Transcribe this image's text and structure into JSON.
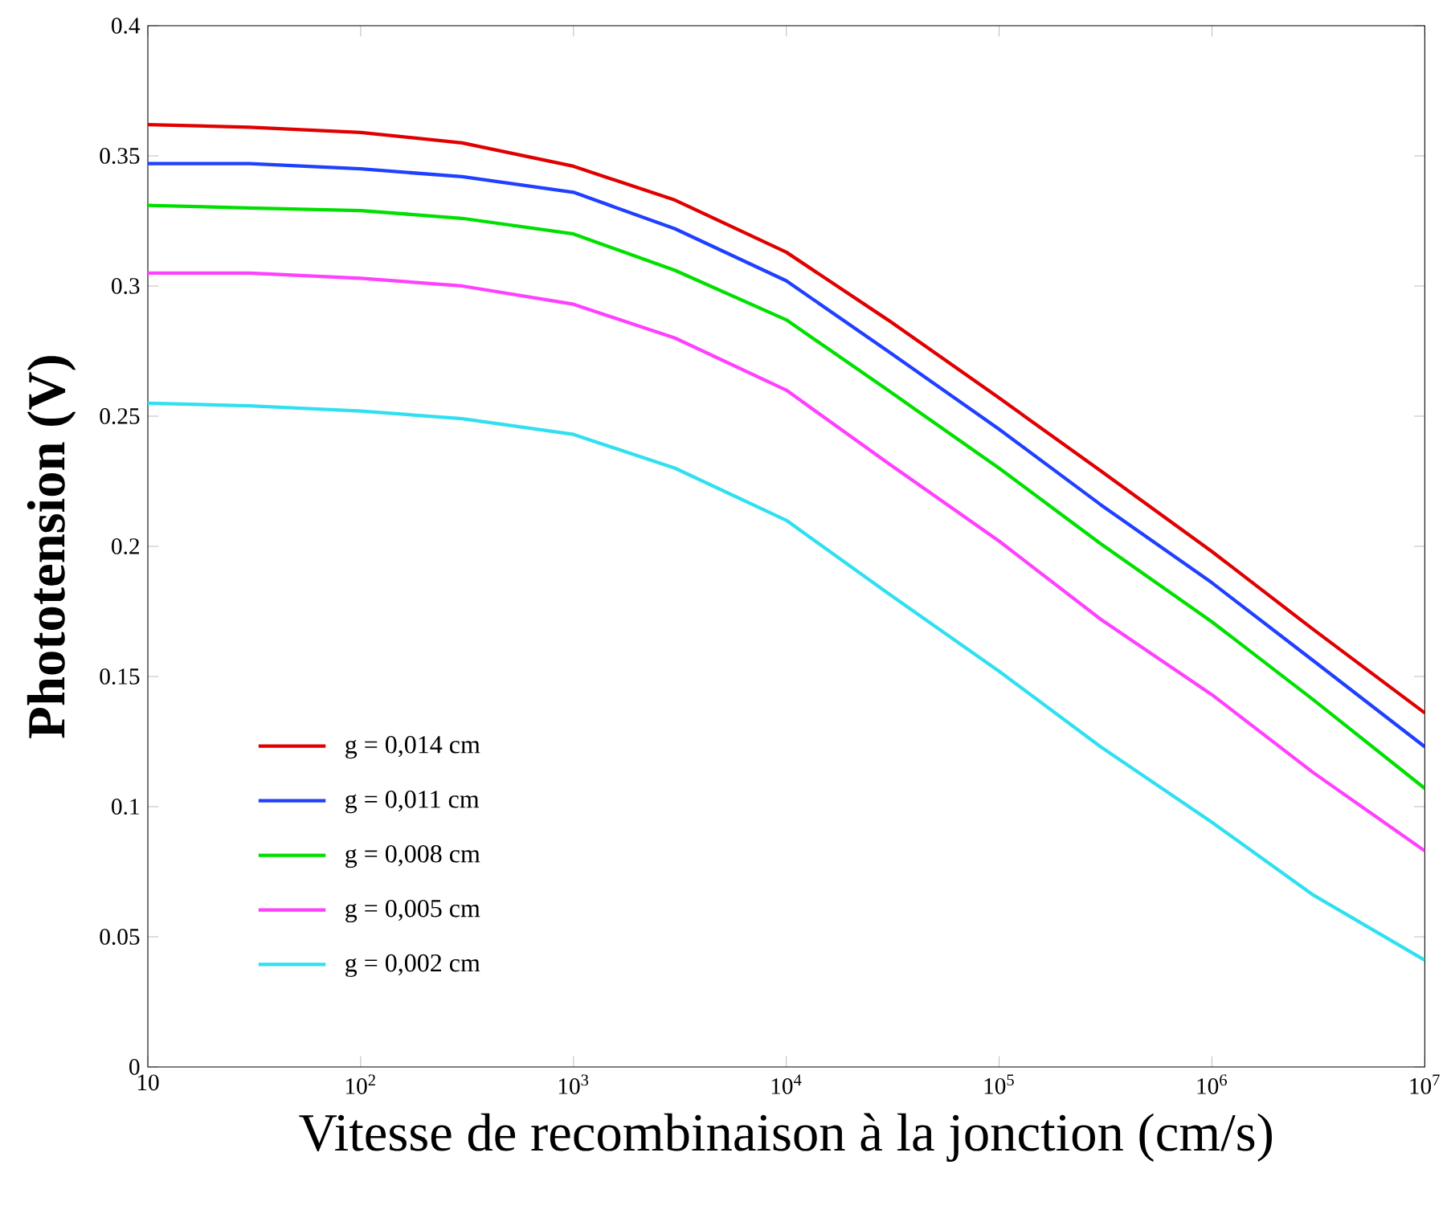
{
  "chart_data": {
    "type": "line",
    "xlabel": "Vitesse de recombinaison à la jonction (cm/s)",
    "ylabel": "Phototension (V)",
    "log": "x",
    "x": [
      10,
      30,
      100,
      300,
      1000,
      3000,
      10000,
      30000,
      100000,
      300000,
      1000000,
      3000000,
      10000000
    ],
    "xlim": [
      10,
      10000000
    ],
    "ylim": [
      0,
      0.4
    ],
    "xticks": [
      10,
      {
        "value": 100,
        "label": "10$^{2}$"
      },
      {
        "value": 1000,
        "label": "10$^{3}$"
      },
      {
        "value": 10000,
        "label": "10$^{4}$"
      },
      {
        "value": 100000,
        "label": "10$^{5}$"
      },
      {
        "value": 1000000,
        "label": "10$^{6}$"
      },
      {
        "value": 10000000,
        "label": "10$^{7}$"
      }
    ],
    "yticks": [
      0,
      0.05,
      0.1,
      0.15,
      0.2,
      0.25,
      0.3,
      0.35,
      0.4
    ],
    "legend": "bottom left",
    "grid": false,
    "line_style": "solid",
    "marker": "none",
    "series": [
      {
        "name": "g = 0,014 cm",
        "color": "#e00000",
        "values": [
          0.362,
          0.361,
          0.359,
          0.355,
          0.346,
          0.333,
          0.313,
          0.287,
          0.257,
          0.229,
          0.198,
          0.168,
          0.136
        ]
      },
      {
        "name": "g = 0,011 cm",
        "color": "#2040ff",
        "values": [
          0.347,
          0.347,
          0.345,
          0.342,
          0.336,
          0.322,
          0.302,
          0.275,
          0.245,
          0.216,
          0.186,
          0.156,
          0.123
        ]
      },
      {
        "name": "g = 0,008 cm",
        "color": "#00e000",
        "values": [
          0.331,
          0.33,
          0.329,
          0.326,
          0.32,
          0.306,
          0.287,
          0.26,
          0.23,
          0.201,
          0.171,
          0.141,
          0.107
        ]
      },
      {
        "name": "g = 0,005 cm",
        "color": "#ff40ff",
        "values": [
          0.305,
          0.305,
          0.303,
          0.3,
          0.293,
          0.28,
          0.26,
          0.232,
          0.202,
          0.172,
          0.143,
          0.113,
          0.083
        ]
      },
      {
        "name": "g = 0,002 cm",
        "color": "#30e0f0",
        "values": [
          0.255,
          0.254,
          0.252,
          0.249,
          0.243,
          0.23,
          0.21,
          0.182,
          0.152,
          0.123,
          0.094,
          0.066,
          0.041
        ]
      }
    ]
  }
}
